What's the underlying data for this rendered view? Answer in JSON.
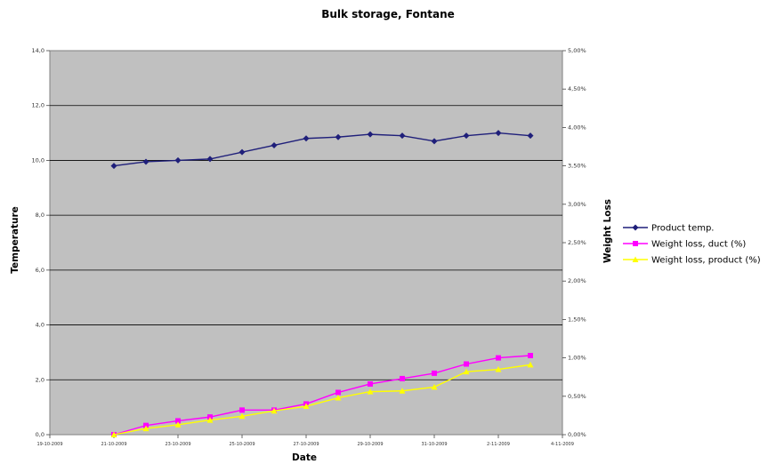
{
  "chart_data": {
    "type": "line",
    "title": "Bulk storage, Fontane",
    "xlabel": "Date",
    "ylabel": "Temperature",
    "y2label": "Weight Loss",
    "ylim": [
      0,
      14
    ],
    "y2lim": [
      0,
      5
    ],
    "y_ticks": [
      "0,0",
      "2,0",
      "4,0",
      "6,0",
      "8,0",
      "10,0",
      "12,0",
      "14,0"
    ],
    "y2_ticks": [
      "0,00%",
      "0,50%",
      "1,00%",
      "1,50%",
      "2,00%",
      "2,50%",
      "3,00%",
      "3,50%",
      "4,00%",
      "4,50%",
      "5,00%"
    ],
    "x_ticks": [
      "19-10-2009",
      "21-10-2009",
      "23-10-2009",
      "25-10-2009",
      "27-10-2009",
      "29-10-2009",
      "31-10-2009",
      "2-11-2009",
      "4-11-2009"
    ],
    "x_range": [
      "2009-10-19",
      "2009-11-04"
    ],
    "grid": "horizontal major gridlines",
    "plot_background": "#c0c0c0",
    "legend_position": "right",
    "series": [
      {
        "name": "Product temp.",
        "axis": "left",
        "color": "#1f1f7a",
        "marker": "diamond",
        "x": [
          "2009-10-21",
          "2009-10-22",
          "2009-10-23",
          "2009-10-24",
          "2009-10-25",
          "2009-10-26",
          "2009-10-27",
          "2009-10-28",
          "2009-10-29",
          "2009-10-30",
          "2009-10-31",
          "2009-11-01",
          "2009-11-02",
          "2009-11-03"
        ],
        "values": [
          9.8,
          9.95,
          10.0,
          10.05,
          10.3,
          10.55,
          10.8,
          10.85,
          10.95,
          10.9,
          10.7,
          10.9,
          11.0,
          10.9
        ]
      },
      {
        "name": "Weight loss, duct (%)",
        "axis": "right",
        "color": "#ff00ff",
        "marker": "square",
        "x": [
          "2009-10-21",
          "2009-10-22",
          "2009-10-23",
          "2009-10-24",
          "2009-10-25",
          "2009-10-26",
          "2009-10-27",
          "2009-10-28",
          "2009-10-29",
          "2009-10-30",
          "2009-10-31",
          "2009-11-01",
          "2009-11-02",
          "2009-11-03"
        ],
        "values": [
          0.0,
          0.12,
          0.18,
          0.23,
          0.32,
          0.32,
          0.4,
          0.55,
          0.66,
          0.73,
          0.8,
          0.92,
          1.0,
          1.03
        ]
      },
      {
        "name": "Weight loss, product (%)",
        "axis": "right",
        "color": "#ffff00",
        "marker": "triangle",
        "x": [
          "2009-10-21",
          "2009-10-22",
          "2009-10-23",
          "2009-10-24",
          "2009-10-25",
          "2009-10-26",
          "2009-10-27",
          "2009-10-28",
          "2009-10-29",
          "2009-10-30",
          "2009-10-31",
          "2009-11-01",
          "2009-11-02",
          "2009-11-03"
        ],
        "values": [
          0.0,
          0.08,
          0.13,
          0.19,
          0.24,
          0.31,
          0.37,
          0.48,
          0.56,
          0.57,
          0.62,
          0.82,
          0.85,
          0.91
        ]
      }
    ]
  }
}
